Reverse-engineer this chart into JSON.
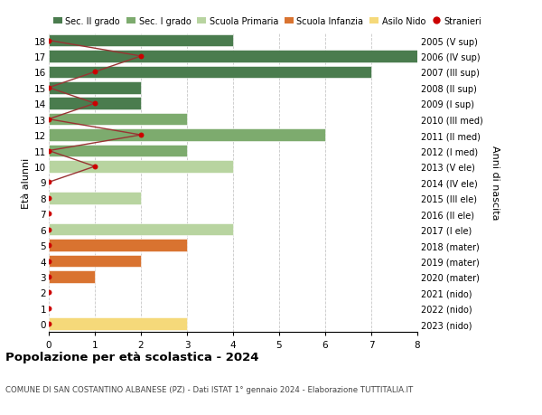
{
  "ages": [
    18,
    17,
    16,
    15,
    14,
    13,
    12,
    11,
    10,
    9,
    8,
    7,
    6,
    5,
    4,
    3,
    2,
    1,
    0
  ],
  "right_labels": [
    "2005 (V sup)",
    "2006 (IV sup)",
    "2007 (III sup)",
    "2008 (II sup)",
    "2009 (I sup)",
    "2010 (III med)",
    "2011 (II med)",
    "2012 (I med)",
    "2013 (V ele)",
    "2014 (IV ele)",
    "2015 (III ele)",
    "2016 (II ele)",
    "2017 (I ele)",
    "2018 (mater)",
    "2019 (mater)",
    "2020 (mater)",
    "2021 (nido)",
    "2022 (nido)",
    "2023 (nido)"
  ],
  "bar_values": [
    4,
    8,
    7,
    2,
    2,
    3,
    6,
    3,
    4,
    0,
    2,
    0,
    4,
    3,
    2,
    1,
    0,
    0,
    3
  ],
  "bar_colors": [
    "#4a7c4e",
    "#4a7c4e",
    "#4a7c4e",
    "#4a7c4e",
    "#4a7c4e",
    "#7dab6e",
    "#7dab6e",
    "#7dab6e",
    "#b8d4a0",
    "#b8d4a0",
    "#b8d4a0",
    "#b8d4a0",
    "#b8d4a0",
    "#d97330",
    "#d97330",
    "#d97330",
    "#f5d97a",
    "#f5d97a",
    "#f5d97a"
  ],
  "stranieri_line_ages": [
    18,
    17,
    16,
    15,
    14,
    13,
    12,
    11,
    10,
    9
  ],
  "stranieri_line_x": [
    0,
    2,
    1,
    0,
    1,
    0,
    2,
    0,
    1,
    0
  ],
  "stranieri_dot_ages": [
    18,
    17,
    16,
    15,
    14,
    13,
    12,
    11,
    10,
    9,
    8,
    7,
    6,
    5,
    4,
    3,
    2,
    1,
    0
  ],
  "stranieri_dot_x": [
    0,
    2,
    1,
    0,
    1,
    0,
    2,
    0,
    1,
    0,
    0,
    0,
    0,
    0,
    0,
    0,
    0,
    0,
    0
  ],
  "legend_labels": [
    "Sec. II grado",
    "Sec. I grado",
    "Scuola Primaria",
    "Scuola Infanzia",
    "Asilo Nido",
    "Stranieri"
  ],
  "legend_colors": [
    "#4a7c4e",
    "#7dab6e",
    "#b8d4a0",
    "#d97330",
    "#f5d97a",
    "#cc0000"
  ],
  "title": "Popolazione per età scolastica - 2024",
  "subtitle": "COMUNE DI SAN COSTANTINO ALBANESE (PZ) - Dati ISTAT 1° gennaio 2024 - Elaborazione TUTTITALIA.IT",
  "ylabel_left": "Età alunni",
  "ylabel_right": "Anni di nascita",
  "xlim": [
    0,
    8
  ],
  "bg_color": "#ffffff",
  "grid_color": "#c8c8c8"
}
